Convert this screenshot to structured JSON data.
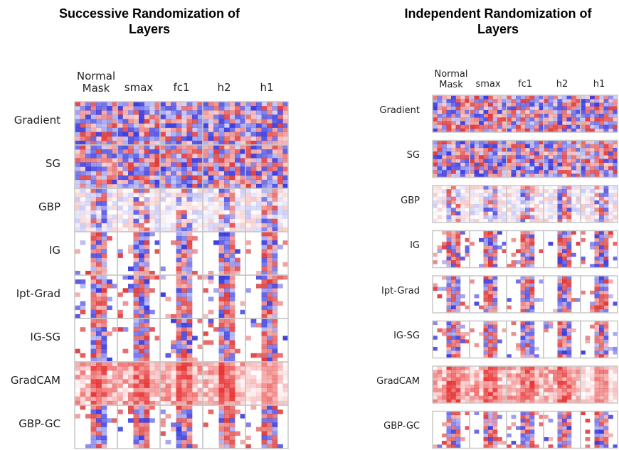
{
  "panels": [
    {
      "title": "Successive Randomization of Layers",
      "columns": [
        "Normal\nMask",
        "smax",
        "fc1",
        "h2",
        "h1"
      ],
      "rows": [
        "Gradient",
        "SG",
        "GBP",
        "IG",
        "Ipt-Grad",
        "IG-SG",
        "GradCAM",
        "GBP-GC"
      ]
    },
    {
      "title": "Independent Randomization of Layers",
      "columns": [
        "Normal\nMask",
        "smax",
        "fc1",
        "h2",
        "h1"
      ],
      "rows": [
        "Gradient",
        "SG",
        "GBP",
        "IG",
        "Ipt-Grad",
        "IG-SG",
        "GradCAM",
        "GBP-GC"
      ]
    }
  ]
}
